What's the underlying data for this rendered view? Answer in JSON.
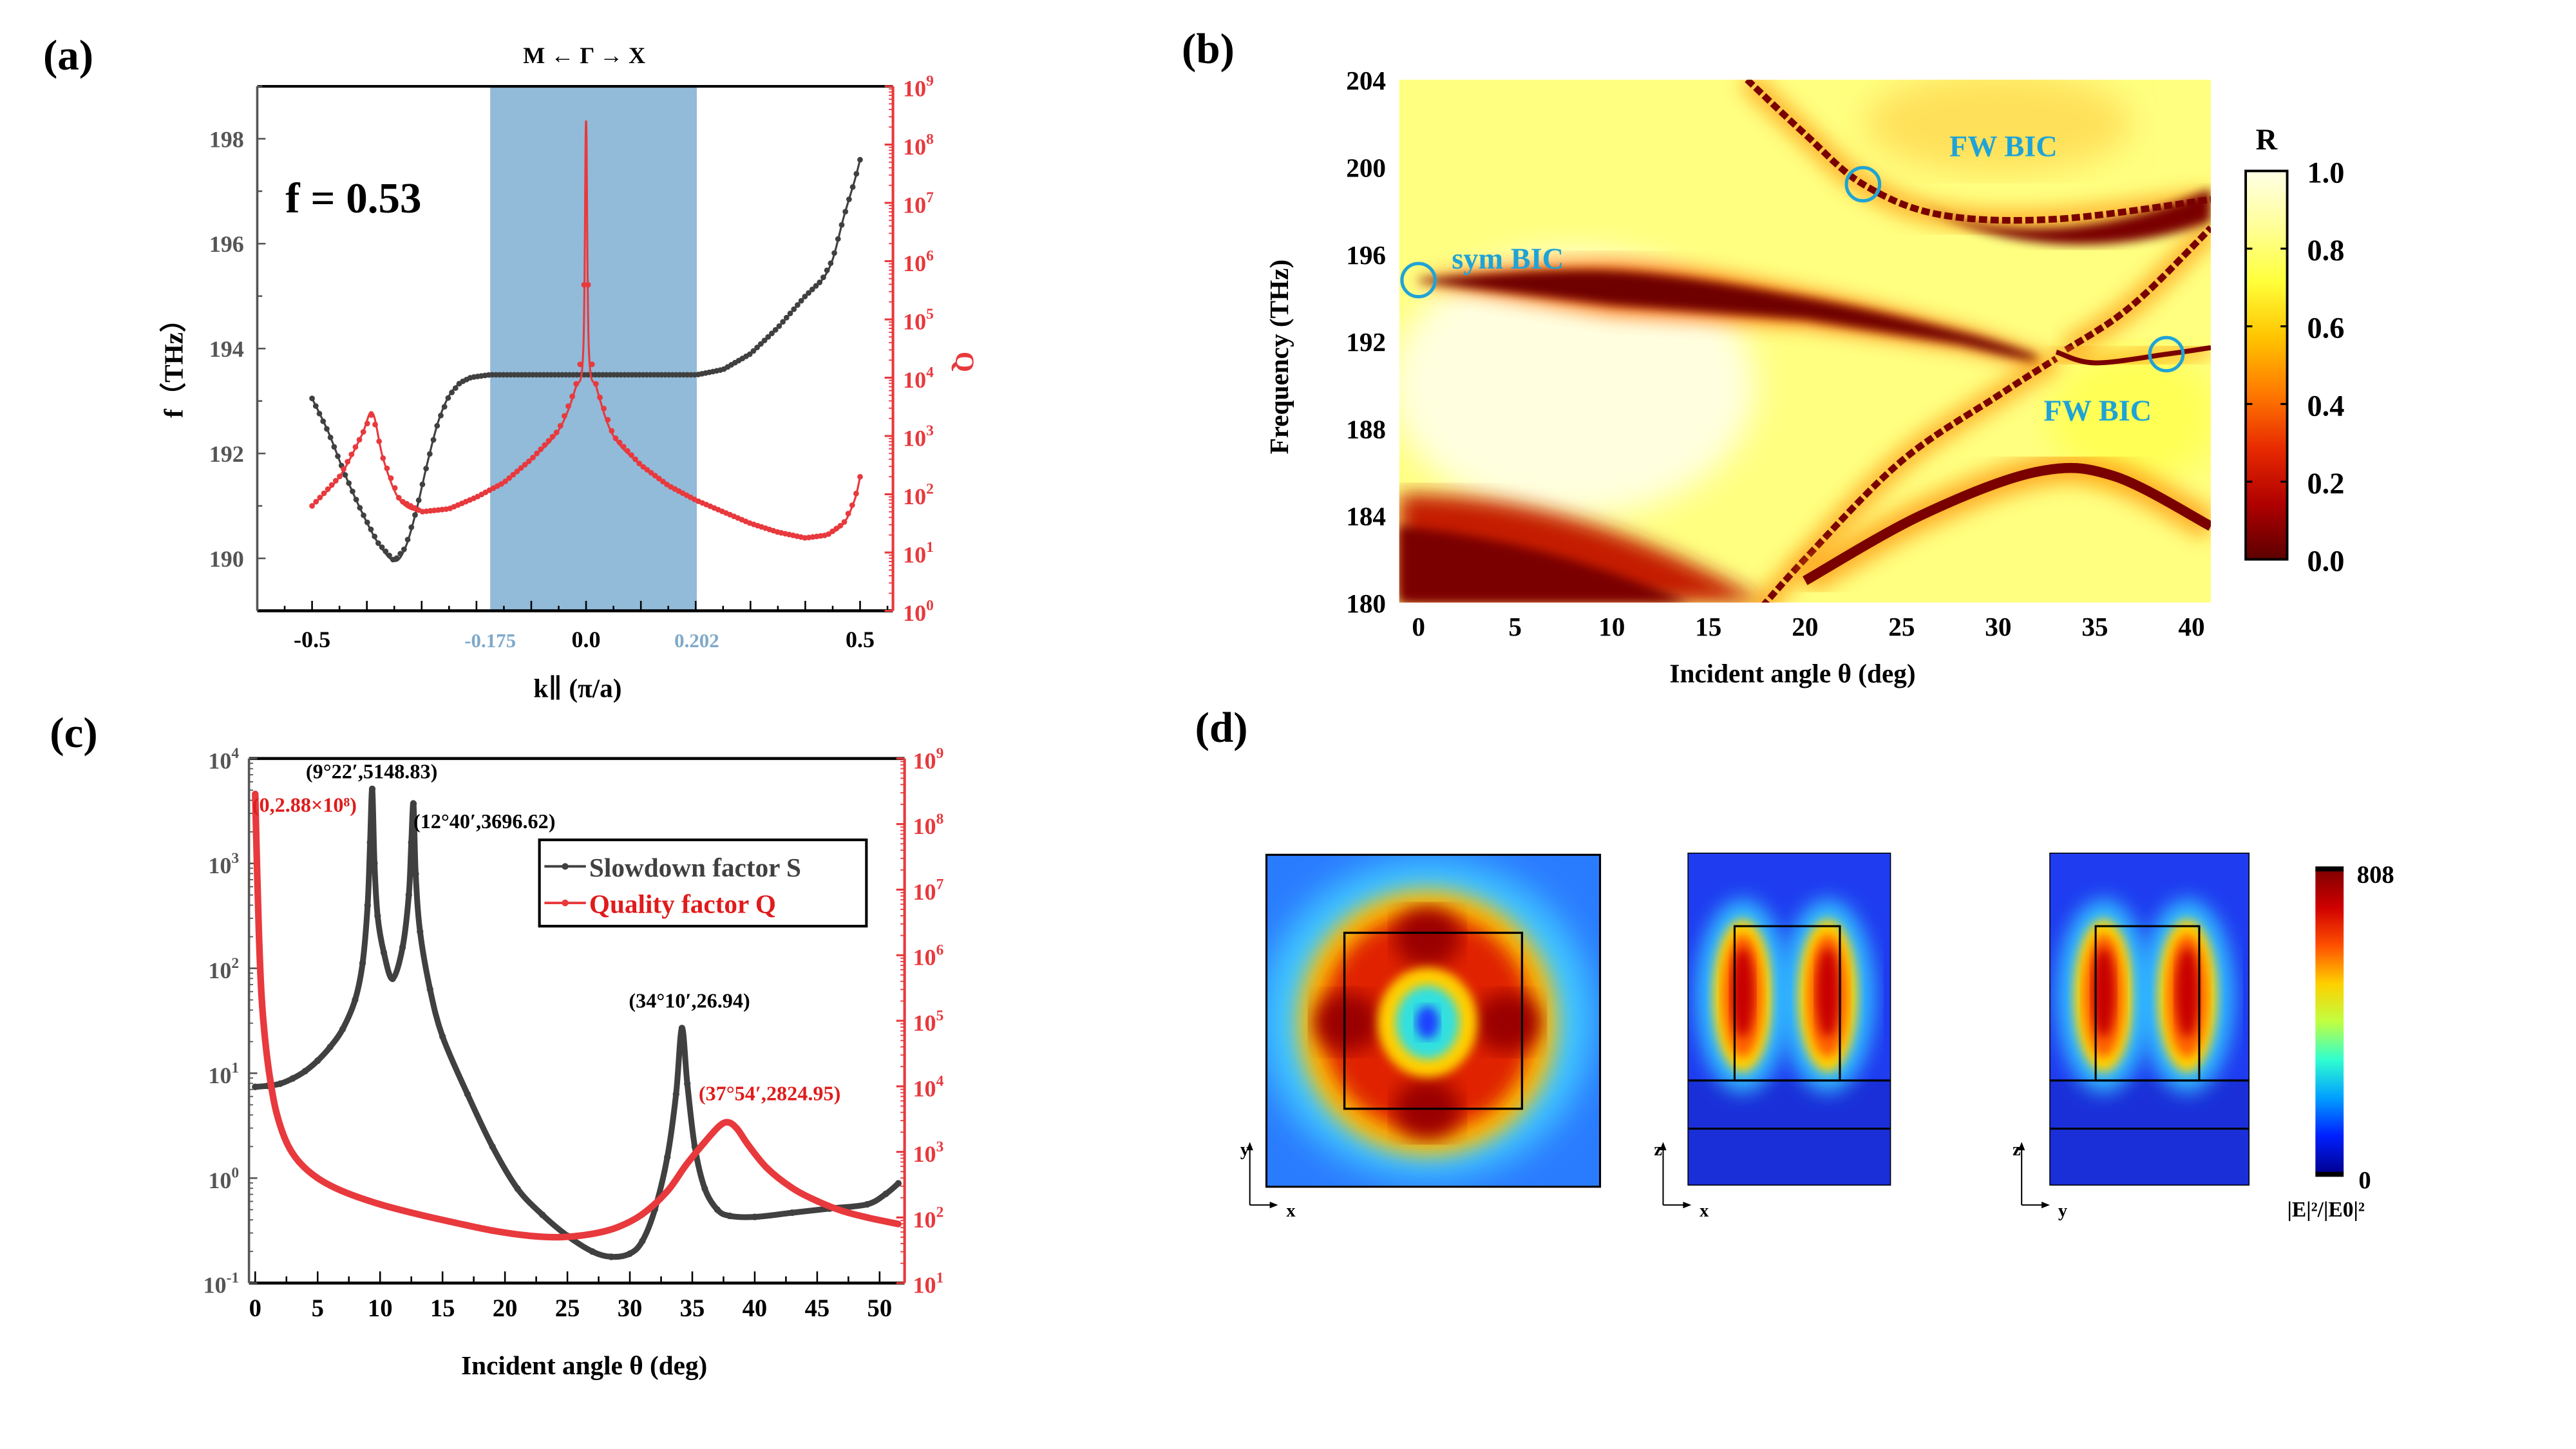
{
  "figure": {
    "panels": [
      "(a)",
      "(b)",
      "(c)",
      "(d)"
    ]
  },
  "chart_data": [
    {
      "id": "a",
      "type": "scatter",
      "panel_label": "(a)",
      "title": "M ← Γ → X",
      "annotation": "f = 0.53",
      "xlabel": "k∥ (π/a)",
      "ylabel_left": "f（THz）",
      "ylabel_right": "Q",
      "xlim": [
        -0.6,
        0.56
      ],
      "ylim_left": [
        189,
        199
      ],
      "ylim_right_log10": [
        0,
        9
      ],
      "x_ticks": [
        "-0.5",
        "0.0",
        "0.5"
      ],
      "x_ticks_values": [
        -0.5,
        0.0,
        0.5
      ],
      "highlight_ticks": [
        "-0.175",
        "0.202"
      ],
      "highlight_ticks_values": [
        -0.175,
        0.202
      ],
      "highlight_band": [
        -0.175,
        0.202
      ],
      "y_ticks_left": [
        "190",
        "192",
        "194",
        "196",
        "198"
      ],
      "y_ticks_right": [
        "10^0",
        "10^1",
        "10^2",
        "10^3",
        "10^4",
        "10^5",
        "10^6",
        "10^7",
        "10^8",
        "10^9"
      ],
      "colors": {
        "frequency": "#404040",
        "Q": "#e8393d",
        "band": "#92bad9",
        "highlight_tick": "#7fa9c9"
      },
      "series": [
        {
          "name": "frequency",
          "axis": "left",
          "x": [
            -0.5,
            -0.47,
            -0.44,
            -0.41,
            -0.38,
            -0.35,
            -0.33,
            -0.31,
            -0.29,
            -0.27,
            -0.25,
            -0.23,
            -0.21,
            -0.19,
            -0.175,
            -0.1,
            0,
            0.1,
            0.202,
            0.25,
            0.3,
            0.35,
            0.4,
            0.43,
            0.45,
            0.47,
            0.49,
            0.5
          ],
          "y": [
            193.05,
            192.4,
            191.6,
            190.9,
            190.3,
            189.95,
            190.2,
            190.9,
            191.8,
            192.6,
            193.1,
            193.35,
            193.45,
            193.48,
            193.5,
            193.5,
            193.5,
            193.5,
            193.5,
            193.6,
            193.9,
            194.4,
            195.0,
            195.3,
            195.7,
            196.5,
            197.2,
            197.6
          ]
        },
        {
          "name": "Q",
          "axis": "right",
          "log": true,
          "x": [
            -0.5,
            -0.45,
            -0.41,
            -0.39,
            -0.37,
            -0.34,
            -0.3,
            -0.25,
            -0.2,
            -0.15,
            -0.1,
            -0.05,
            -0.02,
            -0.005,
            0,
            0.005,
            0.02,
            0.05,
            0.1,
            0.15,
            0.2,
            0.25,
            0.3,
            0.35,
            0.4,
            0.44,
            0.47,
            0.49,
            0.5
          ],
          "y": [
            1.8,
            2.3,
            3.0,
            3.4,
            2.6,
            1.9,
            1.7,
            1.75,
            1.95,
            2.2,
            2.6,
            3.1,
            3.8,
            4.5,
            8.4,
            4.5,
            3.8,
            3.0,
            2.5,
            2.15,
            1.9,
            1.7,
            1.5,
            1.35,
            1.25,
            1.3,
            1.5,
            1.9,
            2.3
          ]
        }
      ]
    },
    {
      "id": "b",
      "type": "heatmap",
      "panel_label": "(b)",
      "xlabel": "Incident angle θ (deg)",
      "ylabel": "Frequency (THz)",
      "xlim": [
        -1,
        41
      ],
      "ylim": [
        180,
        204
      ],
      "x_ticks": [
        "0",
        "5",
        "10",
        "15",
        "20",
        "25",
        "30",
        "35",
        "40"
      ],
      "y_ticks": [
        "180",
        "184",
        "188",
        "192",
        "196",
        "200",
        "204"
      ],
      "colorbar": {
        "title": "R",
        "range": [
          0,
          1
        ],
        "ticks": [
          "0.0",
          "0.2",
          "0.4",
          "0.6",
          "0.8",
          "1.0"
        ],
        "colors": [
          "#5c0000",
          "#b00000",
          "#e82a00",
          "#ff7a00",
          "#ffc400",
          "#ffff3a",
          "#ffff99",
          "#ffffe6"
        ]
      },
      "annotations": [
        {
          "text": "sym BIC",
          "theta": 0,
          "freq": 194.8
        },
        {
          "text": "FW BIC",
          "theta": 23,
          "freq": 199.2
        },
        {
          "text": "FW BIC",
          "theta": 38.7,
          "freq": 191.4
        }
      ],
      "annotation_color": "#1fa3d6",
      "low_R_bands": [
        {
          "name": "sym-BIC band",
          "theta": [
            0,
            10,
            20,
            28,
            32
          ],
          "freq": [
            194.8,
            194.6,
            193.6,
            192.2,
            191.2
          ]
        },
        {
          "name": "diagonal mode",
          "theta": [
            17,
            20,
            25,
            30,
            33
          ],
          "freq": [
            179,
            182,
            186.5,
            189.5,
            191.2
          ]
        },
        {
          "name": "upper FW branch",
          "theta": [
            17,
            20,
            23,
            27,
            33,
            41
          ],
          "freq": [
            204,
            201.5,
            199.2,
            197.8,
            197.6,
            198.5
          ]
        },
        {
          "name": "right diagonal",
          "theta": [
            33.5,
            36,
            38,
            41
          ],
          "freq": [
            191.6,
            193,
            194.5,
            197.2
          ]
        },
        {
          "name": "FW BIC tail",
          "theta": [
            33,
            35,
            38.7,
            41
          ],
          "freq": [
            191.5,
            191,
            191.4,
            191.7
          ]
        },
        {
          "name": "lower arc",
          "theta": [
            20,
            26,
            32,
            36,
            41
          ],
          "freq": [
            181,
            184,
            186,
            185.8,
            183.5
          ]
        },
        {
          "name": "bottom-left dark region",
          "theta": [
            0,
            8,
            16
          ],
          "freq": [
            184,
            182.5,
            180.5
          ]
        }
      ]
    },
    {
      "id": "c",
      "type": "line",
      "panel_label": "(c)",
      "xlabel": "Incident angle θ (deg)",
      "xlim": [
        -0.5,
        52
      ],
      "x_ticks": [
        "0",
        "5",
        "10",
        "15",
        "20",
        "25",
        "30",
        "35",
        "40",
        "45",
        "50"
      ],
      "ylim_left_log10": [
        -1,
        4
      ],
      "ylim_right_log10": [
        1,
        9
      ],
      "y_ticks_left": [
        "10^-1",
        "10^0",
        "10^1",
        "10^2",
        "10^3",
        "10^4"
      ],
      "y_ticks_right": [
        "10^1",
        "10^2",
        "10^3",
        "10^4",
        "10^5",
        "10^6",
        "10^7",
        "10^8",
        "10^9"
      ],
      "legend": {
        "position": "top-right",
        "entries": [
          "Slowdown factor S",
          "Quality factor Q"
        ]
      },
      "colors": {
        "S": "#404040",
        "Q": "#e8393d",
        "Q_text": "#e01b1b"
      },
      "annotations": [
        {
          "text": "(9°22′,5148.83)",
          "series": "S",
          "theta": 9.37,
          "value": 5148.83,
          "color": "#000000"
        },
        {
          "text": "(12°40′,3696.62)",
          "series": "S",
          "theta": 12.67,
          "value": 3696.62,
          "color": "#000000"
        },
        {
          "text": "(34°10′,26.94)",
          "series": "S",
          "theta": 34.17,
          "value": 26.94,
          "color": "#000000"
        },
        {
          "text": "(0,2.88×10⁸)",
          "series": "Q",
          "theta": 0,
          "value": 288000000,
          "color": "#e01b1b"
        },
        {
          "text": "(37°54′,2824.95)",
          "series": "Q",
          "theta": 37.9,
          "value": 2824.95,
          "color": "#e01b1b"
        }
      ],
      "series": [
        {
          "name": "Slowdown factor S",
          "axis": "left",
          "x": [
            0,
            1,
            2,
            3,
            4,
            5,
            6,
            7,
            8,
            8.6,
            9.0,
            9.2,
            9.37,
            9.55,
            9.8,
            10.3,
            11,
            11.8,
            12.3,
            12.5,
            12.67,
            12.85,
            13.2,
            14,
            15,
            17,
            19,
            21,
            23,
            25,
            27,
            28.5,
            30,
            31,
            32,
            33,
            33.7,
            34.17,
            34.6,
            35.2,
            36,
            37,
            38,
            40,
            43,
            46,
            49,
            50.5,
            51.5
          ],
          "y_log10": [
            0.87,
            0.88,
            0.9,
            0.95,
            1.02,
            1.12,
            1.25,
            1.42,
            1.7,
            2.05,
            2.6,
            3.2,
            3.71,
            3.0,
            2.5,
            2.15,
            1.9,
            2.2,
            2.7,
            3.2,
            3.57,
            2.9,
            2.35,
            1.8,
            1.35,
            0.8,
            0.3,
            -0.1,
            -0.35,
            -0.55,
            -0.7,
            -0.75,
            -0.72,
            -0.6,
            -0.3,
            0.2,
            0.8,
            1.43,
            0.9,
            0.3,
            -0.1,
            -0.3,
            -0.36,
            -0.37,
            -0.33,
            -0.29,
            -0.25,
            -0.15,
            -0.05
          ]
        },
        {
          "name": "Quality factor Q",
          "axis": "right",
          "x": [
            0,
            0.15,
            0.3,
            0.5,
            0.8,
            1.2,
            1.7,
            2.5,
            3.5,
            5,
            7,
            10,
            13,
            16,
            19,
            22,
            24.5,
            27,
            29,
            31,
            33,
            34.5,
            36,
            37.2,
            37.9,
            38.6,
            39.5,
            41,
            43,
            45,
            47,
            49,
            51.5
          ],
          "y_log10": [
            8.46,
            7.3,
            6.3,
            5.4,
            4.7,
            4.1,
            3.6,
            3.15,
            2.85,
            2.6,
            2.4,
            2.2,
            2.05,
            1.92,
            1.8,
            1.72,
            1.7,
            1.75,
            1.85,
            2.05,
            2.4,
            2.8,
            3.15,
            3.4,
            3.45,
            3.35,
            3.1,
            2.75,
            2.45,
            2.25,
            2.1,
            2.0,
            1.9
          ]
        }
      ]
    },
    {
      "id": "d",
      "type": "heatmap",
      "panel_label": "(d)",
      "colorbar": {
        "max_label": "808",
        "min_label": "0",
        "range": [
          0,
          808
        ],
        "title": "|E|²/|E0|²",
        "colors": [
          "#00008f",
          "#0020ff",
          "#00a0ff",
          "#30ffd0",
          "#c0ff40",
          "#ffd000",
          "#ff5000",
          "#d00000",
          "#800000"
        ]
      },
      "maps": [
        {
          "name": "xy-plane",
          "axes": [
            "x",
            "y"
          ],
          "pattern": "ring with four lobes"
        },
        {
          "name": "xz-plane",
          "axes": [
            "x",
            "z"
          ],
          "pattern": "two vertical lobes"
        },
        {
          "name": "yz-plane",
          "axes": [
            "y",
            "z"
          ],
          "pattern": "two vertical lobes"
        }
      ]
    }
  ]
}
